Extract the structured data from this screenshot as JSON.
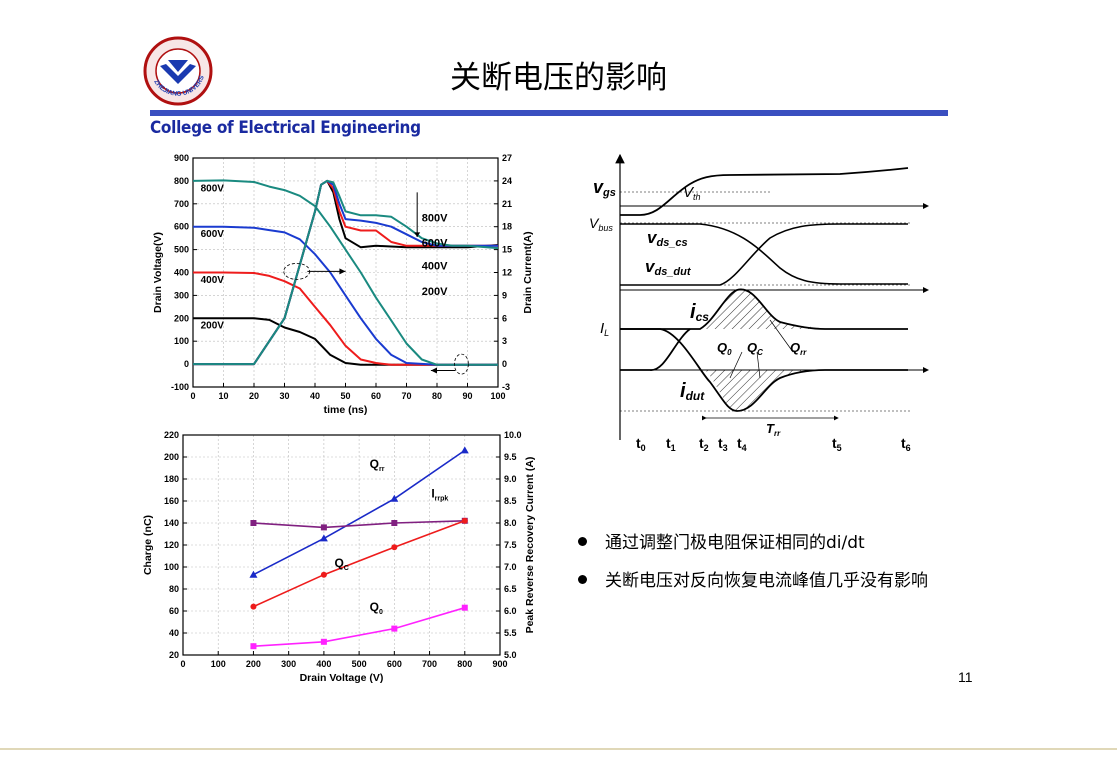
{
  "slide": {
    "title": "关断电压的影响",
    "college": "College of Electrical Engineering",
    "logo_text": "ZHEJIANG UNIVERSITY",
    "page_number": "11",
    "bullets": [
      "通过调整门极电阻保证相同的di/dt",
      "关断电压对反向恢复电流峰值几乎没有影响"
    ]
  },
  "colors": {
    "accent_bar": "#3a4fc0",
    "college_text": "#1a2aa0",
    "v200": "#000000",
    "v400": "#ee1c1c",
    "v600": "#1a3bd0",
    "v800": "#1a8a80"
  },
  "chart_data": [
    {
      "type": "line",
      "xlabel": "time (ns)",
      "ylabel": "Drain Voltage(V)",
      "ylabel_right": "Drain Current(A)",
      "xlim": [
        0,
        100
      ],
      "ylim": [
        -100,
        900
      ],
      "ylim_right": [
        -3,
        27
      ],
      "x_ticks": [
        "0",
        "10",
        "20",
        "30",
        "40",
        "50",
        "60",
        "70",
        "80",
        "90",
        "100"
      ],
      "y_ticks": [
        "-100",
        "0",
        "100",
        "200",
        "300",
        "400",
        "500",
        "600",
        "700",
        "800",
        "900"
      ],
      "y_ticks_right": [
        "-3",
        "0",
        "3",
        "6",
        "9",
        "12",
        "15",
        "18",
        "21",
        "24",
        "27"
      ],
      "grid": true,
      "annotations": [
        "800V",
        "600V",
        "400V",
        "200V"
      ],
      "arrow_labels": [
        "800V",
        "600V",
        "400V",
        "200V"
      ],
      "series": [
        {
          "name": "200V",
          "axis": "left",
          "color": "#000000",
          "x": [
            0,
            10,
            20,
            25,
            30,
            35,
            40,
            45,
            50,
            55,
            60,
            70,
            80,
            90,
            100
          ],
          "y": [
            200,
            200,
            200,
            193,
            160,
            140,
            110,
            40,
            5,
            -3,
            -3,
            -3,
            -3,
            -3,
            -3
          ]
        },
        {
          "name": "400V",
          "axis": "left",
          "color": "#ee1c1c",
          "x": [
            0,
            10,
            20,
            25,
            30,
            35,
            40,
            45,
            50,
            55,
            60,
            65,
            70,
            80,
            90,
            100
          ],
          "y": [
            400,
            400,
            398,
            385,
            362,
            330,
            250,
            170,
            80,
            20,
            5,
            -3,
            -3,
            -3,
            -3,
            -3
          ]
        },
        {
          "name": "600V",
          "axis": "left",
          "color": "#1a3bd0",
          "x": [
            0,
            10,
            20,
            25,
            30,
            35,
            40,
            45,
            50,
            55,
            60,
            65,
            70,
            80,
            90,
            100
          ],
          "y": [
            600,
            600,
            595,
            585,
            575,
            545,
            480,
            400,
            300,
            200,
            110,
            40,
            5,
            -3,
            -3,
            -3
          ]
        },
        {
          "name": "800V",
          "axis": "left",
          "color": "#1a8a80",
          "x": [
            0,
            10,
            20,
            25,
            30,
            35,
            40,
            45,
            50,
            55,
            60,
            65,
            70,
            75,
            80,
            90,
            100
          ],
          "y": [
            800,
            802,
            795,
            775,
            760,
            735,
            690,
            600,
            500,
            400,
            290,
            190,
            90,
            20,
            -3,
            -3,
            -3
          ]
        },
        {
          "name": "Id 200V",
          "axis": "right",
          "color": "#000000",
          "x": [
            0,
            10,
            20,
            30,
            35,
            40,
            42,
            44,
            46,
            48,
            50,
            55,
            60,
            70,
            80,
            90,
            100
          ],
          "y": [
            0,
            0,
            0,
            6,
            13,
            20,
            23.5,
            24,
            22.5,
            19,
            16.5,
            15.3,
            15.5,
            15.3,
            15.3,
            15.3,
            15.6
          ]
        },
        {
          "name": "Id 400V",
          "axis": "right",
          "color": "#ee1c1c",
          "x": [
            0,
            10,
            20,
            30,
            35,
            40,
            42,
            44,
            46,
            48,
            50,
            55,
            60,
            65,
            70,
            80,
            90,
            100
          ],
          "y": [
            0,
            0,
            0,
            6,
            13,
            20,
            23.5,
            24,
            23,
            20,
            18,
            17.5,
            17.5,
            16,
            15.5,
            15.5,
            15.5,
            15.5
          ]
        },
        {
          "name": "Id 600V",
          "axis": "right",
          "color": "#1a3bd0",
          "x": [
            0,
            10,
            20,
            30,
            35,
            40,
            42,
            44,
            46,
            48,
            50,
            55,
            60,
            65,
            70,
            75,
            80,
            90,
            100
          ],
          "y": [
            0,
            0,
            0,
            6,
            13,
            20,
            23.5,
            24,
            23.5,
            21,
            19,
            18.8,
            18.5,
            18,
            17,
            16,
            15.5,
            15.5,
            15.5
          ]
        },
        {
          "name": "Id 800V",
          "axis": "right",
          "color": "#1a8a80",
          "x": [
            0,
            10,
            20,
            30,
            35,
            40,
            42,
            44,
            46,
            48,
            50,
            55,
            60,
            65,
            70,
            75,
            80,
            85,
            90,
            100
          ],
          "y": [
            0,
            0,
            0,
            6,
            13,
            20,
            23.5,
            24,
            23.8,
            22,
            20,
            19.5,
            19.5,
            19.3,
            18,
            16.5,
            15.8,
            15.5,
            15.5,
            15.2
          ]
        }
      ]
    },
    {
      "type": "line",
      "xlabel": "Drain Voltage (V)",
      "ylabel": "Charge (nC)",
      "ylabel_right": "Peak Reverse Recovery Current (A)",
      "xlim": [
        0,
        900
      ],
      "ylim": [
        20,
        220
      ],
      "ylim_right": [
        5.0,
        10.0
      ],
      "x_ticks": [
        "0",
        "100",
        "200",
        "300",
        "400",
        "500",
        "600",
        "700",
        "800",
        "900"
      ],
      "y_ticks": [
        "20",
        "40",
        "60",
        "80",
        "100",
        "120",
        "140",
        "160",
        "180",
        "200",
        "220"
      ],
      "y_ticks_right": [
        "5.0",
        "5.5",
        "6.0",
        "6.5",
        "7.0",
        "7.5",
        "8.0",
        "8.5",
        "9.0",
        "9.5",
        "10.0"
      ],
      "grid": true,
      "series": [
        {
          "name": "Qrr",
          "label": "Q",
          "sub": "rr",
          "axis": "left",
          "color": "#1a2ac8",
          "marker": "triangle",
          "x": [
            200,
            400,
            600,
            800
          ],
          "y": [
            93,
            126,
            162,
            206
          ]
        },
        {
          "name": "Irrpk",
          "label": "I",
          "sub": "rrpk",
          "axis": "right",
          "color": "#802080",
          "marker": "square",
          "x": [
            200,
            400,
            600,
            800
          ],
          "y": [
            8.0,
            7.9,
            8.0,
            8.05
          ]
        },
        {
          "name": "QC",
          "label": "Q",
          "sub": "C",
          "axis": "left",
          "color": "#ee1c1c",
          "marker": "circle",
          "x": [
            200,
            400,
            600,
            800
          ],
          "y": [
            64,
            93,
            118,
            142
          ]
        },
        {
          "name": "Q0",
          "label": "Q",
          "sub": "0",
          "axis": "left",
          "color": "#ff22ff",
          "marker": "square",
          "x": [
            200,
            400,
            600,
            800
          ],
          "y": [
            28,
            32,
            44,
            63
          ]
        }
      ]
    },
    {
      "type": "diagram",
      "signals": [
        "v_gs",
        "V_th",
        "V_bus",
        "v_ds_cs",
        "v_ds_dut",
        "i_cs",
        "I_L",
        "Q_0",
        "Q_C",
        "Q_rr",
        "i_dut",
        "T_rr"
      ],
      "time_labels": [
        "t0",
        "t1",
        "t2",
        "t3",
        "t4",
        "t5",
        "t6"
      ]
    }
  ]
}
